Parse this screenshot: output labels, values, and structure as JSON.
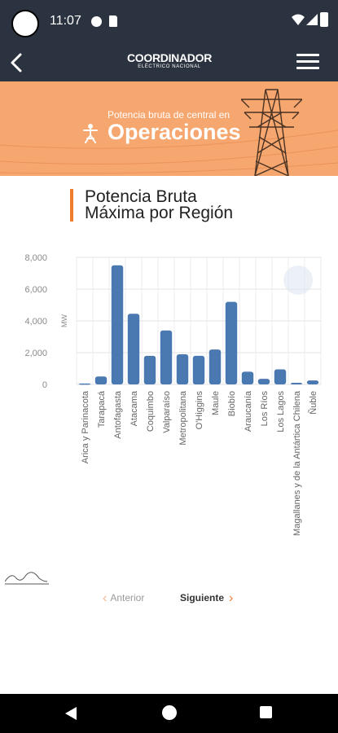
{
  "status_bar": {
    "time": "11:07"
  },
  "app_bar": {
    "brand_top": "COORDINADOR",
    "brand_bottom": "ELÉCTRICO NACIONAL",
    "icons": {
      "back": "back-arrow-icon",
      "menu": "hamburger-menu-icon"
    }
  },
  "banner": {
    "subtitle": "Potencia bruta de central en",
    "title": "Operaciones",
    "icon": "tower-person-icon",
    "bg_color": "#f6a66f"
  },
  "section": {
    "title_line1": "Potencia Bruta",
    "title_line2": "Máxima por Región",
    "accent_color": "#f07d2f"
  },
  "chart_data": {
    "type": "bar",
    "ylabel": "MW",
    "ylim": [
      0,
      8000
    ],
    "yticks": [
      "0",
      "2,000",
      "4,000",
      "6,000",
      "8,000"
    ],
    "categories": [
      "Arica y Parinacota",
      "Tarapacá",
      "Antofagasta",
      "Atacama",
      "Coquimbo",
      "Valparaíso",
      "Metropolitana",
      "O'Higgins",
      "Maule",
      "Biobío",
      "Araucanía",
      "Los Ríos",
      "Los Lagos",
      "Magallanes y de la Antártica Chilena",
      "Ñuble"
    ],
    "values": [
      60,
      500,
      7500,
      4450,
      1800,
      3400,
      1900,
      1800,
      2200,
      5200,
      800,
      350,
      950,
      100,
      250
    ],
    "bar_color": "#4a78b0",
    "grid": true
  },
  "pager": {
    "prev_label": "Anterior",
    "next_label": "Siguiente"
  }
}
